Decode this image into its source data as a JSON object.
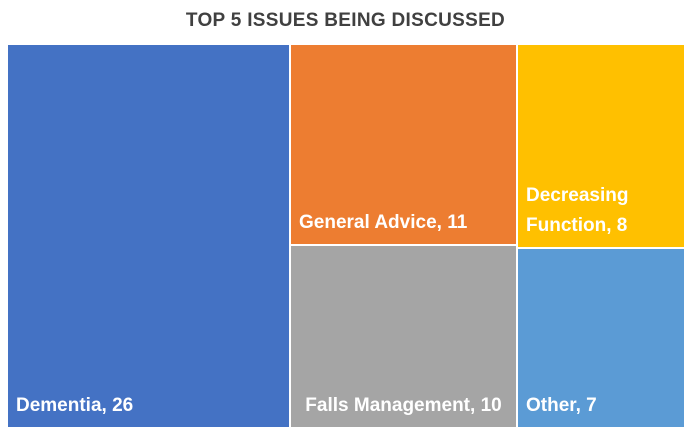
{
  "chart_data": {
    "type": "treemap",
    "title": "TOP 5 ISSUES BEING DISCUSSED",
    "items": [
      {
        "label": "Dementia, 26",
        "name": "Dementia",
        "value": 26,
        "color": "#4472c4"
      },
      {
        "label": "General Advice, 11",
        "name": "General Advice",
        "value": 11,
        "color": "#ed7d31"
      },
      {
        "label": "Falls Management, 10",
        "name": "Falls Management",
        "value": 10,
        "color": "#a5a5a5"
      },
      {
        "label": "Decreasing Function, 8",
        "name": "Decreasing Function",
        "value": 8,
        "color": "#ffc000"
      },
      {
        "label": "Other, 7",
        "name": "Other",
        "value": 7,
        "color": "#5b9bd5"
      }
    ]
  }
}
